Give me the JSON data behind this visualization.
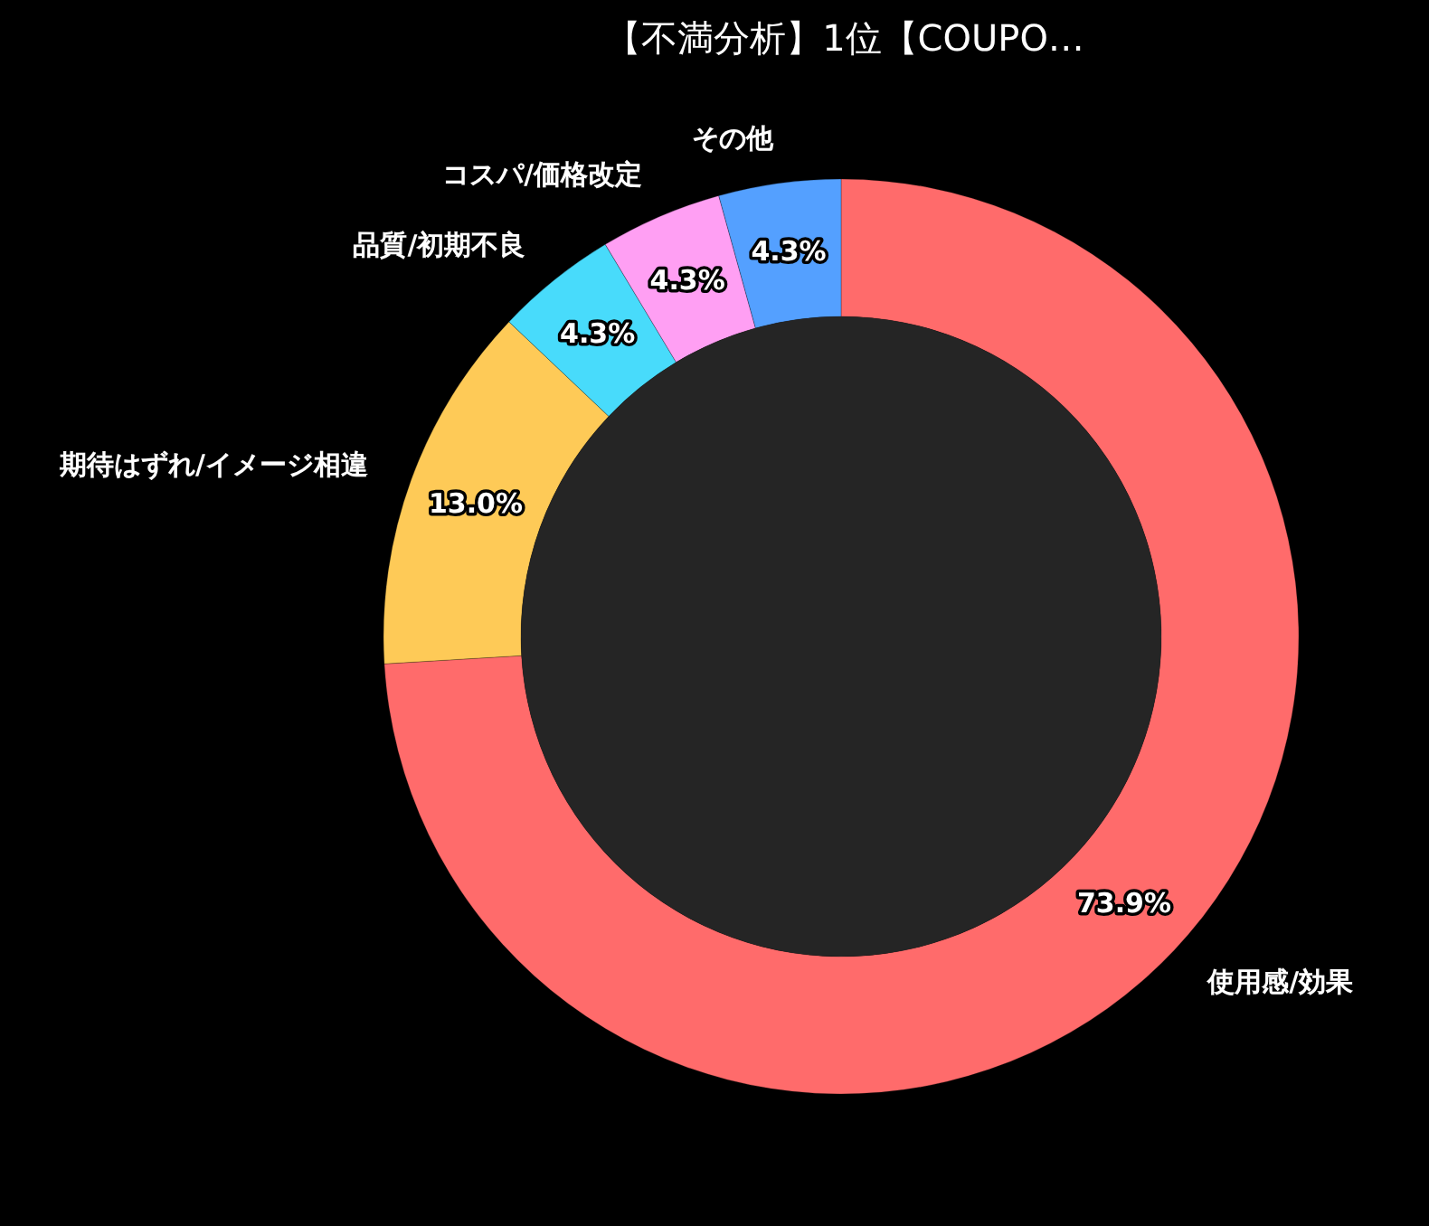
{
  "chart_data": {
    "type": "donut",
    "title": "【不満分析】1位【COUPO…",
    "categories": [
      "使用感/効果",
      "期待はずれ/イメージ相違",
      "品質/初期不良",
      "コスパ/価格改定",
      "その他"
    ],
    "values": [
      73.9,
      13.0,
      4.3,
      4.3,
      4.3
    ],
    "colors": [
      "#ff6b6b",
      "#feca57",
      "#48dbfb",
      "#ff9ff3",
      "#54a0ff"
    ],
    "value_labels": [
      "73.9%",
      "13.0%",
      "4.3%",
      "4.3%",
      "4.3%"
    ]
  }
}
